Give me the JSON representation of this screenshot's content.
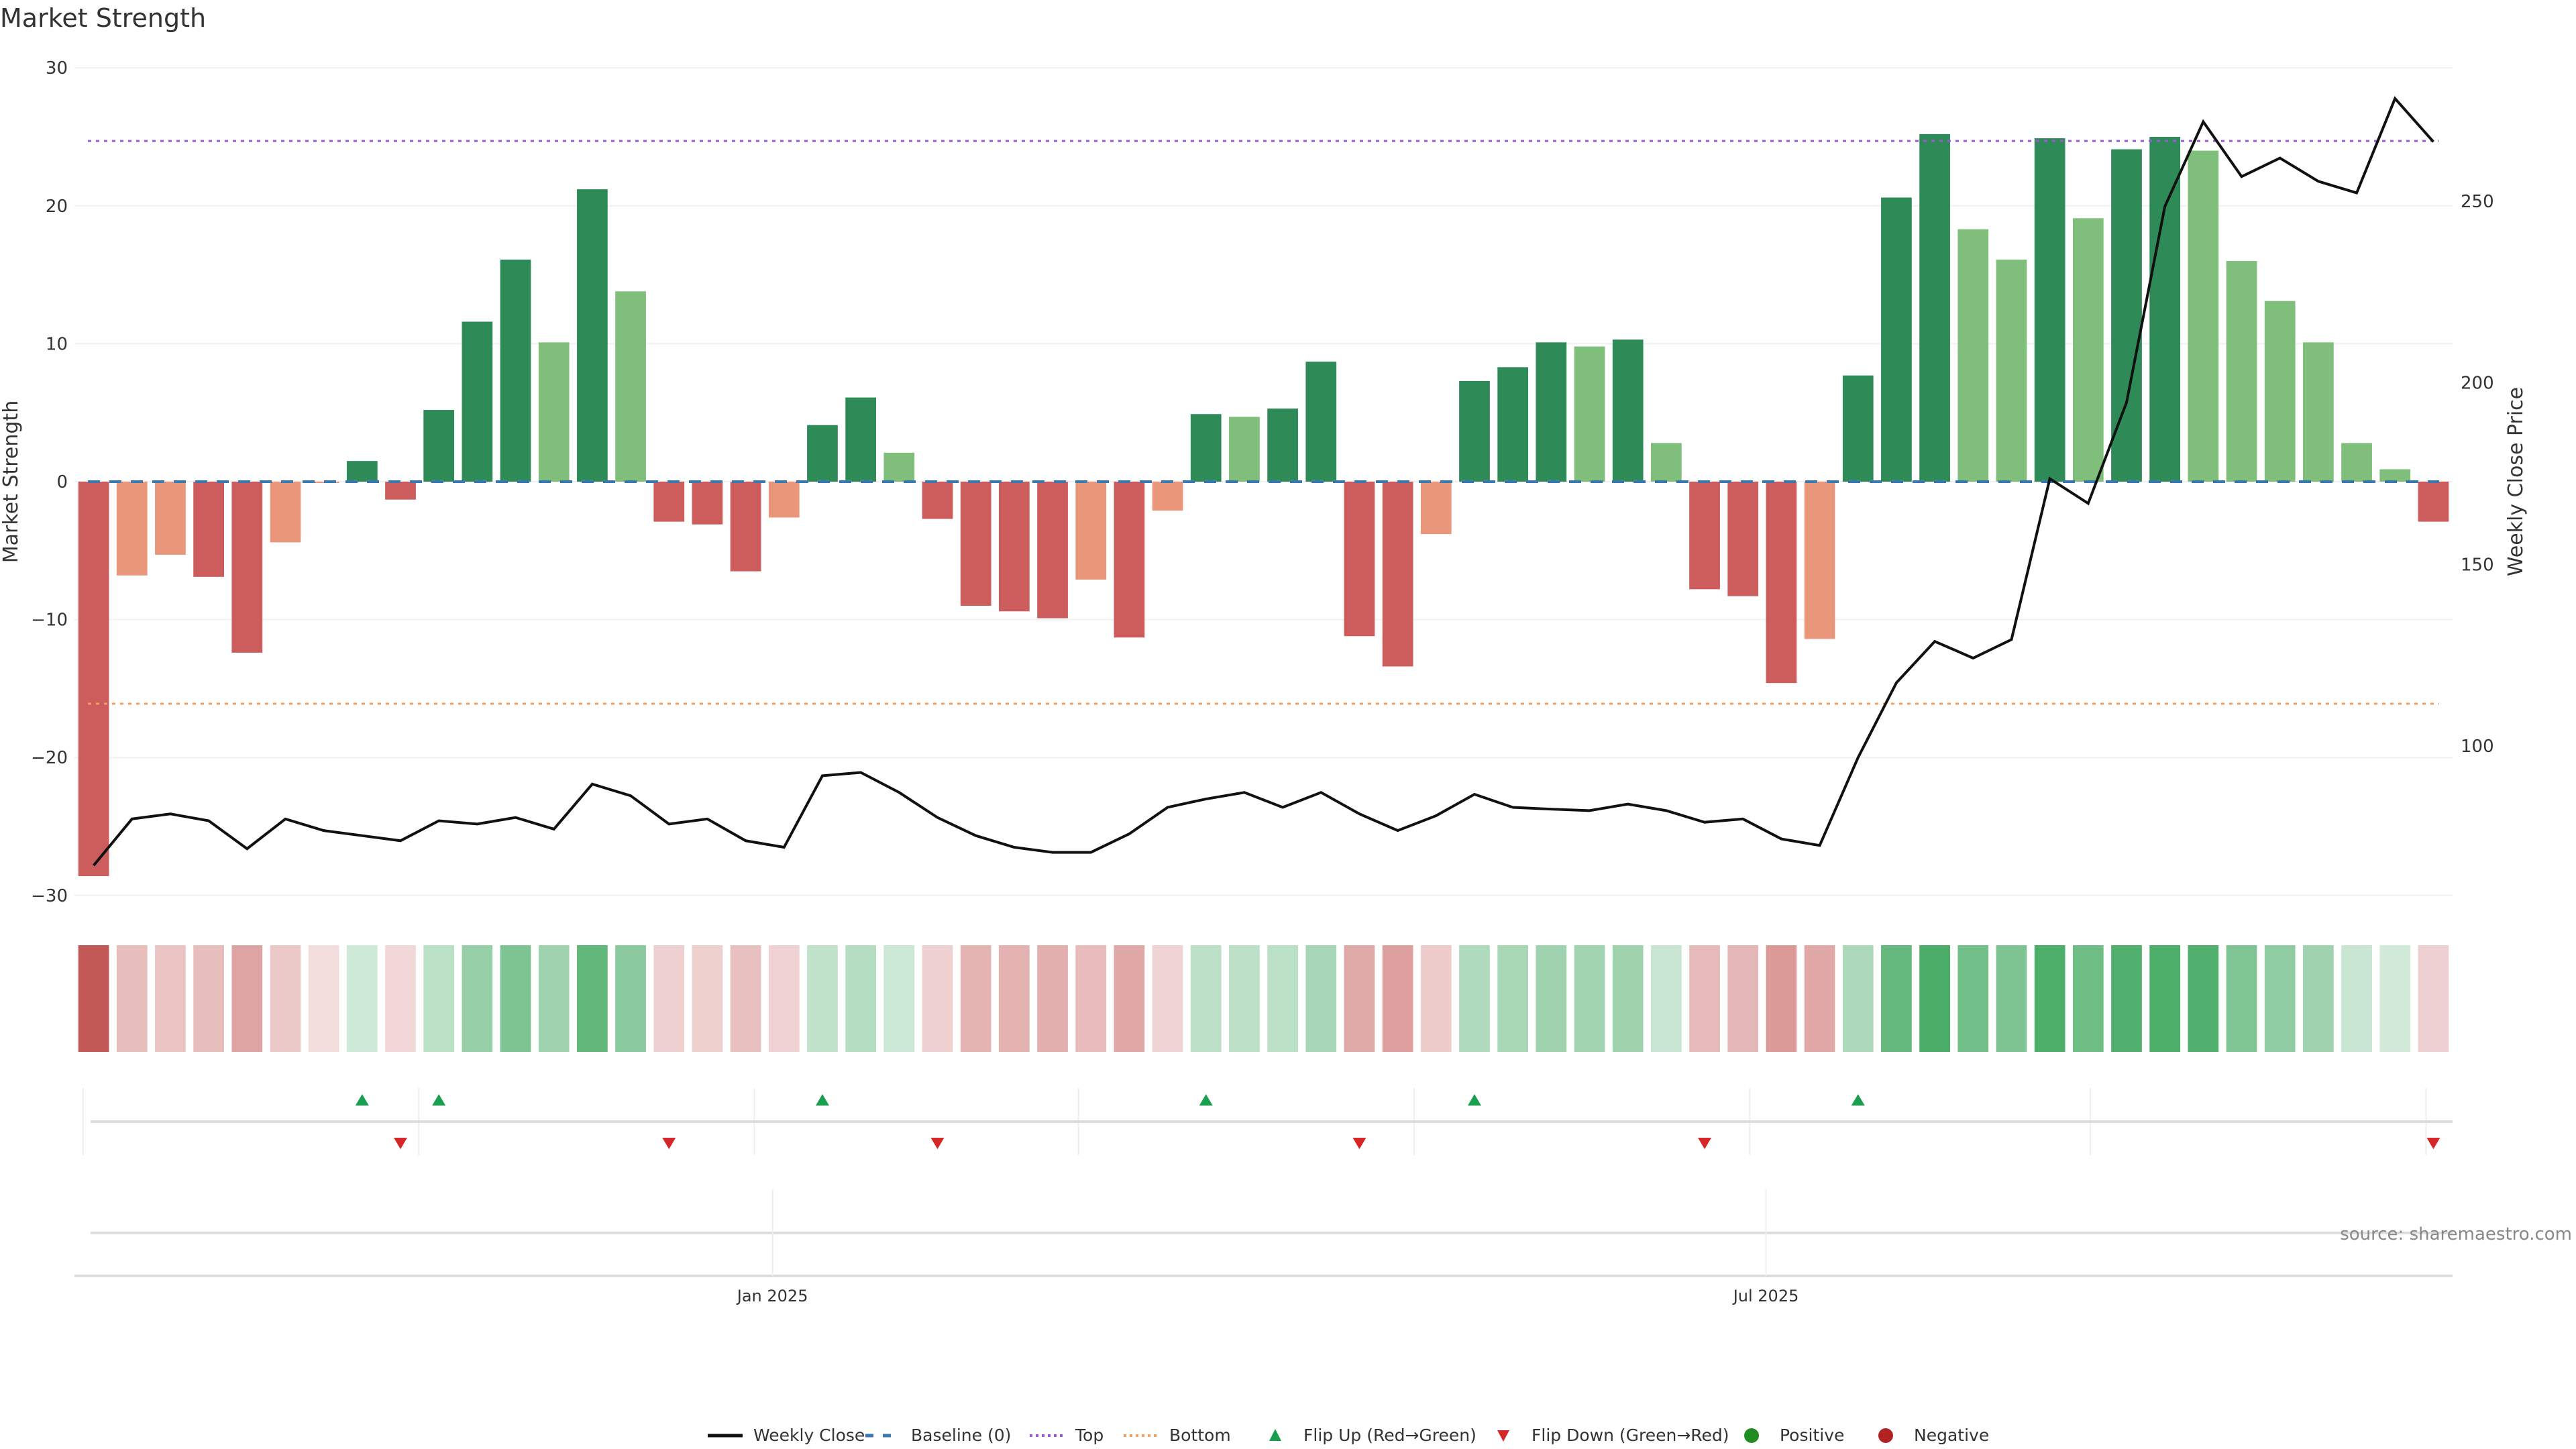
{
  "chart_data": {
    "type": "bar",
    "title": "Market Strength",
    "ylabel": "Market Strength",
    "y2label": "Weekly Close Price",
    "ylim": [
      -30,
      30
    ],
    "yticks": [
      30,
      20,
      10,
      0,
      -10,
      -20,
      -30
    ],
    "y2lim": [
      60,
      285
    ],
    "y2ticks": [
      250,
      200,
      150,
      100
    ],
    "top_level": 24.7,
    "bottom_level": -16.1,
    "x_tick_labels": [
      {
        "label": "Jan 2025",
        "index": 17.7
      },
      {
        "label": "Jul 2025",
        "index": 43.6
      }
    ],
    "strength": [
      -28.6,
      -6.8,
      -5.3,
      -6.9,
      -12.4,
      -4.4,
      -0.1,
      1.5,
      -1.3,
      5.2,
      11.6,
      16.1,
      10.1,
      21.2,
      13.8,
      -2.9,
      -3.1,
      -6.5,
      -2.6,
      4.1,
      6.1,
      2.1,
      -2.7,
      -9.0,
      -9.4,
      -9.9,
      -7.1,
      -11.3,
      -2.1,
      4.9,
      4.7,
      5.3,
      8.7,
      -11.2,
      -13.4,
      -3.8,
      7.3,
      8.3,
      10.1,
      9.8,
      10.3,
      2.8,
      -7.8,
      -8.3,
      -14.6,
      -11.4,
      7.7,
      20.6,
      25.2,
      18.3,
      16.1,
      24.9,
      19.1,
      24.1,
      25.0,
      24.0,
      16.0,
      13.1,
      10.1,
      2.8,
      0.9,
      -2.9
    ],
    "shade": [
      "r",
      "s",
      "s",
      "r",
      "r",
      "s",
      "s",
      "d",
      "r",
      "d",
      "d",
      "d",
      "l",
      "d",
      "l",
      "r",
      "r",
      "r",
      "s",
      "d",
      "d",
      "l",
      "r",
      "r",
      "r",
      "r",
      "s",
      "r",
      "s",
      "d",
      "l",
      "d",
      "d",
      "r",
      "r",
      "s",
      "d",
      "d",
      "d",
      "l",
      "d",
      "l",
      "r",
      "r",
      "r",
      "s",
      "d",
      "d",
      "d",
      "l",
      "l",
      "d",
      "l",
      "d",
      "d",
      "l",
      "l",
      "l",
      "l",
      "l",
      "l",
      "r"
    ],
    "weekly_close": [
      67.1,
      79.9,
      81.3,
      79.4,
      71.7,
      79.9,
      76.7,
      75.3,
      73.9,
      79.4,
      78.5,
      80.3,
      77.1,
      89.5,
      86.3,
      78.5,
      79.9,
      73.9,
      72.1,
      91.8,
      92.7,
      87.2,
      80.3,
      75.3,
      72.1,
      70.7,
      70.7,
      75.8,
      83.1,
      85.4,
      87.2,
      83.1,
      87.2,
      81.3,
      76.7,
      80.8,
      86.7,
      83.1,
      82.6,
      82.2,
      84.0,
      82.2,
      79.0,
      79.9,
      74.4,
      72.6,
      96.8,
      117.4,
      128.8,
      124.2,
      129.3,
      173.6,
      166.8,
      194.6,
      248.6,
      271.9,
      256.8,
      261.9,
      255.5,
      252.3,
      278.3,
      266.4
    ],
    "flip_up": [
      7,
      9,
      19,
      29,
      36,
      46
    ],
    "flip_down": [
      8,
      15,
      22,
      33,
      42,
      61
    ],
    "legend": [
      "Weekly Close",
      "Baseline (0)",
      "Top",
      "Bottom",
      "Flip Up (Red→Green)",
      "Flip Down (Green→Red)",
      "Positive",
      "Negative"
    ],
    "legend_placement": "bottom-center",
    "colors": {
      "dark_green": "#2e8b57",
      "light_green": "#7fbf7b",
      "red": "#cd5c5c",
      "salmon": "#e9967a",
      "baseline": "#3a78b0",
      "top": "#9b59d0",
      "bottom": "#f0a060",
      "flip_up": "#1a9e50",
      "flip_down": "#d62728",
      "positive": "#228b22",
      "negative": "#b22222"
    }
  },
  "source": "source: sharemaestro.com"
}
